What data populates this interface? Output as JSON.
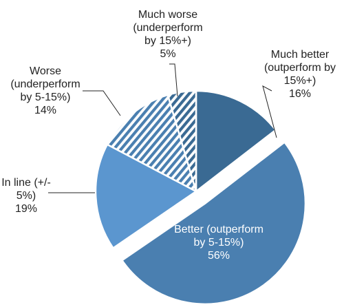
{
  "chart_data": {
    "type": "pie",
    "title": "",
    "slices": [
      {
        "key": "much_better",
        "lines": [
          "Much better",
          "(outperform by",
          "15%+)",
          "16%"
        ],
        "value": 16,
        "color": "#3a6a93",
        "pattern": "solid",
        "exploded": false
      },
      {
        "key": "better",
        "lines": [
          "Better (outperform",
          "by 5-15%)",
          "56%"
        ],
        "value": 56,
        "color": "#4a7fb0",
        "pattern": "solid",
        "exploded": true
      },
      {
        "key": "in_line",
        "lines": [
          "In line (+/-",
          "5%)",
          "19%"
        ],
        "value": 19,
        "color": "#5b96cf",
        "pattern": "solid",
        "exploded": false
      },
      {
        "key": "worse",
        "lines": [
          "Worse",
          "(underperform",
          "by 5-15%)",
          "14%"
        ],
        "value": 14,
        "color": "#4a7fb0",
        "pattern": "hatch",
        "exploded": false
      },
      {
        "key": "much_worse",
        "lines": [
          "Much worse",
          "(underperform",
          "by 15%+)",
          "5%"
        ],
        "value": 5,
        "color": "#3a6a93",
        "pattern": "hatch",
        "exploded": false
      }
    ]
  }
}
